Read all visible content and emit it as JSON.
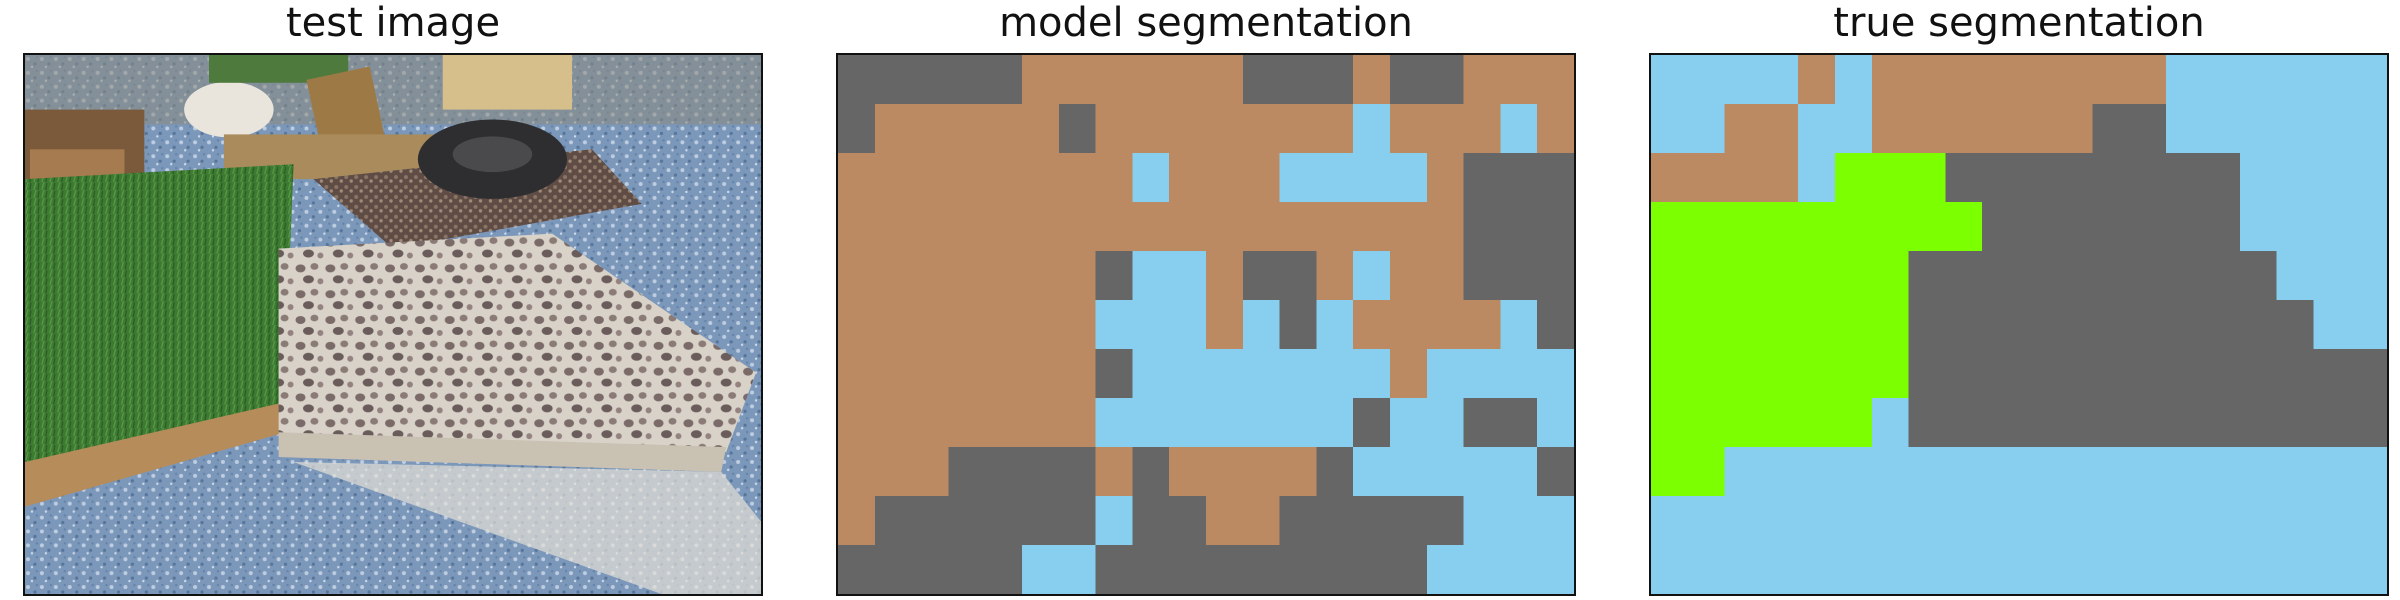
{
  "panels": [
    {
      "title": "test image"
    },
    {
      "title": "model segmentation"
    },
    {
      "title": "true segmentation"
    }
  ],
  "legend_colors": {
    "brown": "#bb8a62",
    "gray": "#666666",
    "blue": "#88ceee",
    "green": "#7cff00"
  },
  "grids": {
    "model": [
      "GGGGGBBBBBBGGGBGGBBB",
      "GBBBBBGBBBBBBBLBBBLB",
      "BBBBBBBBLBBBLLLLBGGG",
      "BBBBBBBBBBBBBBBBBGGG",
      "BBBBBBBGLLBGGBLBBGGG",
      "BBBBBBBLLLBLGLBBBBLG",
      "BBBBBBBGLLLLLLLBLLLL",
      "BBBBBBBLLLLLLLGLLGGL",
      "BBBGGGGBGBBBBGLLLLLG",
      "BGGGGGGLGGBBGGGGGLLL",
      "GGGGGLLGGGGGGGGGLLLL"
    ],
    "truth": [
      "LLLLBLBBBBBBBBLLLLLL",
      "LLBBLLBBBBBBGGLLLLLL",
      "BBBBLNNNGGGGGGGGLLLL",
      "NNNNNNNNNGGGGGGGLLLL",
      "NNNNNNNGGGGGGGGGGLLL",
      "NNNNNNNGGGGGGGGGGGLL",
      "NNNNNNNGGGGGGGGGGGGG",
      "NNNNNNLGGGGGGGGGGGGG",
      "NNLLLLLLLLLLLLLLLLLL",
      "LLLLLLLLLLLLLLLLLLLL",
      "LLLLLLLLLLLLLLLLLLLL"
    ]
  }
}
